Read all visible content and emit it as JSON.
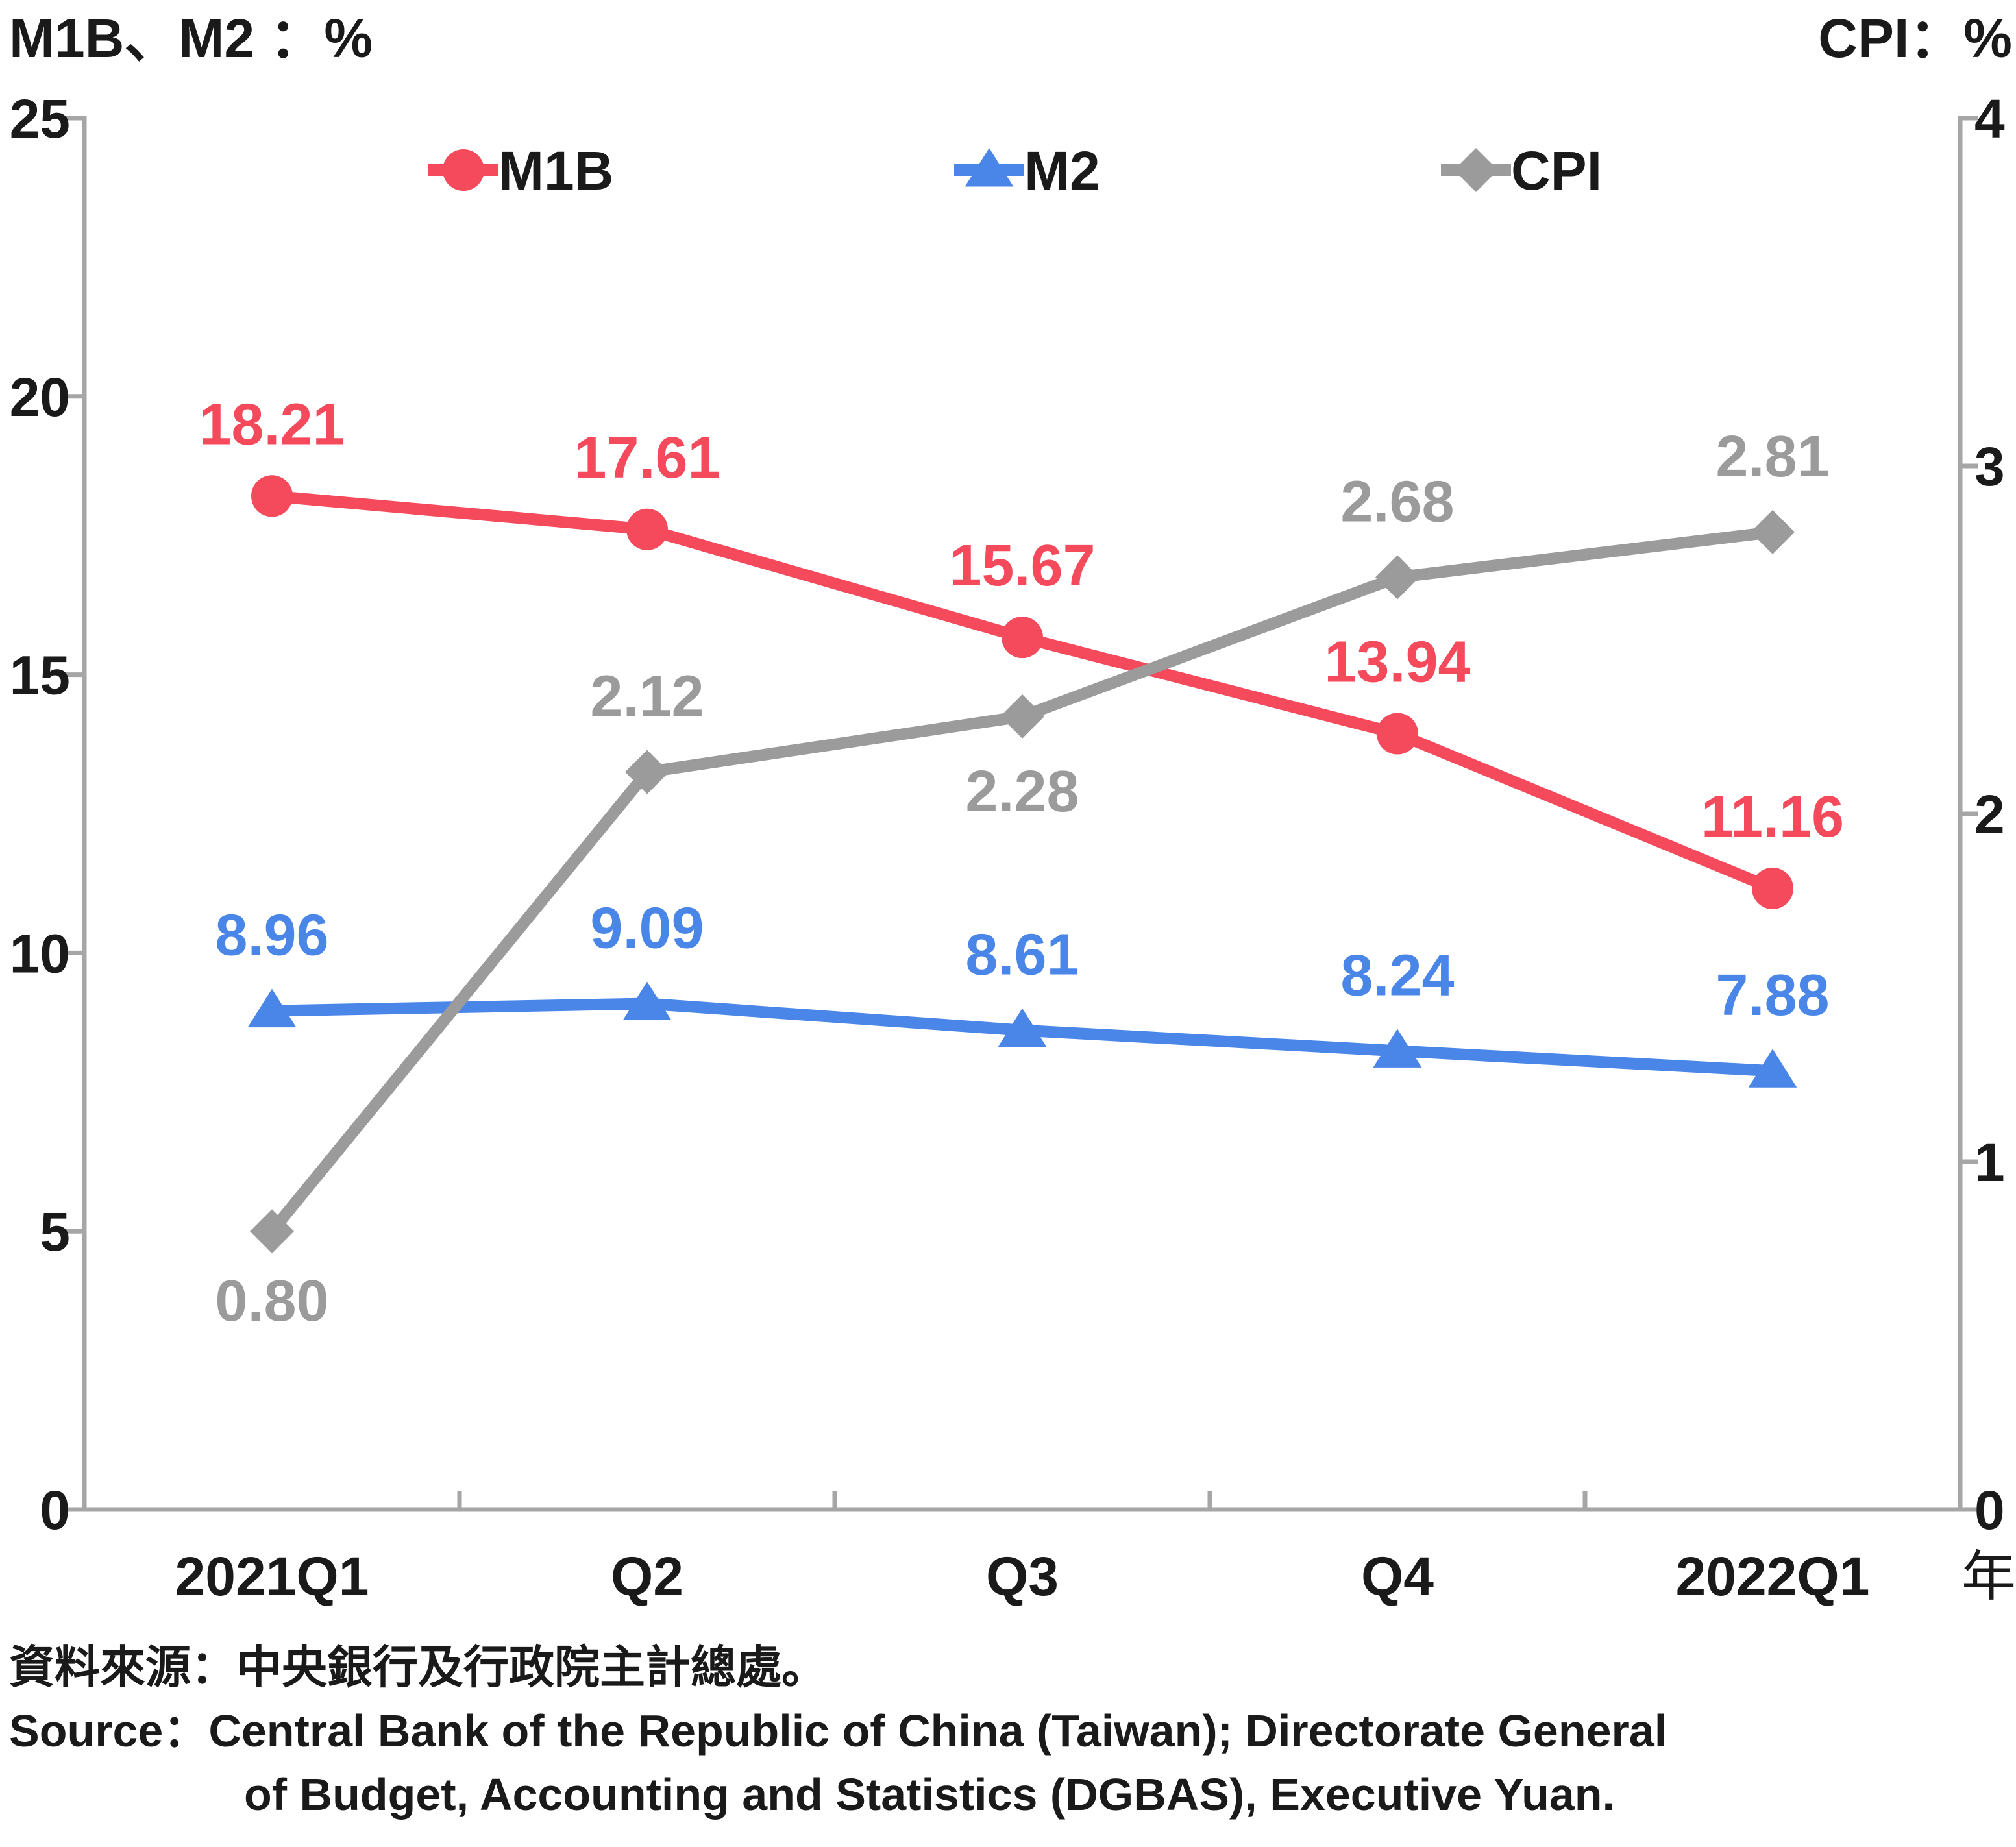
{
  "chart_data": {
    "type": "line",
    "left_axis_title": "M1B、M2 ：%",
    "right_axis_title": "CPI：%",
    "categories": [
      "2021Q1",
      "Q2",
      "Q3",
      "Q4",
      "2022Q1"
    ],
    "x_unit": "年",
    "left_axis": {
      "range": [
        0,
        25
      ],
      "ticks": [
        "0",
        "5",
        "10",
        "15",
        "20",
        "25"
      ]
    },
    "right_axis": {
      "range": [
        0,
        4
      ],
      "ticks": [
        "0",
        "1",
        "2",
        "3",
        "4"
      ]
    },
    "grid": false,
    "legend_position": "top",
    "series": [
      {
        "name": "M1B",
        "axis": "left",
        "color": "#f5495c",
        "marker": "circle",
        "values": [
          18.21,
          17.61,
          15.67,
          13.94,
          11.16
        ],
        "labels": [
          "18.21",
          "17.61",
          "15.67",
          "13.94",
          "11.16"
        ]
      },
      {
        "name": "M2",
        "axis": "left",
        "color": "#4a86e8",
        "marker": "triangle",
        "values": [
          8.96,
          9.09,
          8.61,
          8.24,
          7.88
        ],
        "labels": [
          "8.96",
          "9.09",
          "8.61",
          "8.24",
          "7.88"
        ]
      },
      {
        "name": "CPI",
        "axis": "right",
        "color": "#9b9b9b",
        "marker": "diamond",
        "values": [
          0.8,
          2.12,
          2.28,
          2.68,
          2.81
        ],
        "labels": [
          "0.80",
          "2.12",
          "2.28",
          "2.68",
          "2.81"
        ]
      }
    ]
  },
  "source": {
    "zh": "資料來源：中央銀行及行政院主計總處。",
    "en_prefix": "Source：",
    "en_line1": "Central Bank of the Republic of China (Taiwan); Directorate General",
    "en_line2": "of Budget, Accounting and Statistics (DGBAS), Executive Yuan."
  }
}
